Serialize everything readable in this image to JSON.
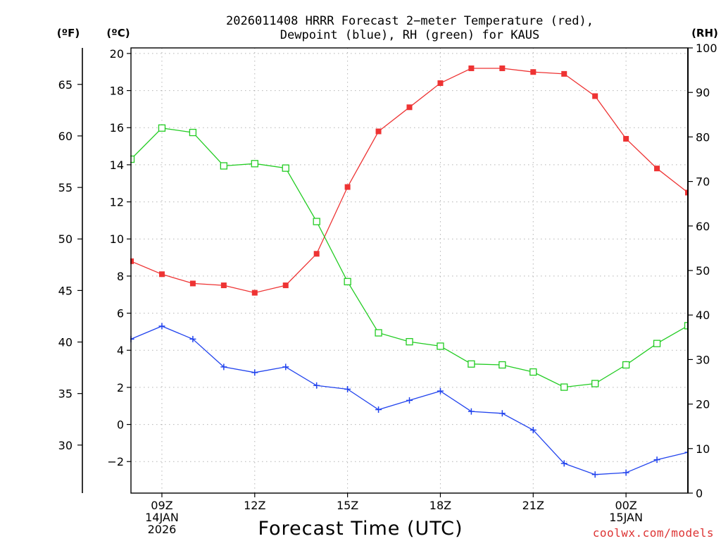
{
  "chart_data": {
    "type": "line",
    "title_lines": [
      "2026011408 HRRR Forecast 2−meter Temperature (red),",
      "Dewpoint (blue), RH (green) for KAUS"
    ],
    "xlabel": "Forecast Time (UTC)",
    "credit": "coolwx.com/models",
    "units": {
      "fahrenheit": "(ºF)",
      "celsius": "(ºC)",
      "rh": "(RH)"
    },
    "x_range": [
      8,
      26
    ],
    "x_ticks": [
      {
        "x": 9,
        "lines": [
          "09Z",
          "14JAN",
          "2026"
        ]
      },
      {
        "x": 12,
        "lines": [
          "12Z"
        ]
      },
      {
        "x": 15,
        "lines": [
          "15Z"
        ]
      },
      {
        "x": 18,
        "lines": [
          "18Z"
        ]
      },
      {
        "x": 21,
        "lines": [
          "21Z"
        ]
      },
      {
        "x": 24,
        "lines": [
          "00Z",
          "15JAN"
        ]
      }
    ],
    "celsius_axis": {
      "range": [
        -3.7,
        20.3
      ],
      "ticks": [
        20,
        18,
        16,
        14,
        12,
        10,
        8,
        6,
        4,
        2,
        0,
        -2
      ],
      "tick_labels": [
        "20",
        "18",
        "16",
        "14",
        "12",
        "10",
        "8",
        "6",
        "4",
        "2",
        "0",
        "−2"
      ]
    },
    "fahrenheit_axis": {
      "ticks": [
        65,
        60,
        55,
        50,
        45,
        40,
        35,
        30
      ],
      "tick_labels": [
        "65",
        "60",
        "55",
        "50",
        "45",
        "40",
        "35",
        "30"
      ]
    },
    "rh_axis": {
      "range": [
        0,
        100
      ],
      "ticks": [
        100,
        90,
        80,
        70,
        60,
        50,
        40,
        30,
        20,
        10,
        0
      ],
      "tick_labels": [
        "100",
        "90",
        "80",
        "70",
        "60",
        "50",
        "40",
        "30",
        "20",
        "10",
        "0"
      ]
    },
    "x": [
      8,
      9,
      10,
      11,
      12,
      13,
      14,
      15,
      16,
      17,
      18,
      19,
      20,
      21,
      22,
      23,
      24,
      25,
      26
    ],
    "series": [
      {
        "name": "2-meter Temperature",
        "axis": "celsius",
        "color": "#ee3333",
        "marker": "filled-square",
        "values": [
          8.8,
          8.1,
          7.6,
          7.5,
          7.1,
          7.5,
          9.2,
          12.8,
          15.8,
          17.1,
          18.4,
          19.2,
          19.2,
          19.0,
          18.9,
          17.7,
          15.4,
          13.8,
          12.5
        ]
      },
      {
        "name": "Dewpoint",
        "axis": "celsius",
        "color": "#2244ee",
        "marker": "plus",
        "values": [
          4.6,
          5.3,
          4.6,
          3.1,
          2.8,
          3.1,
          2.1,
          1.9,
          0.8,
          1.3,
          1.8,
          0.7,
          0.6,
          -0.3,
          -2.1,
          -2.7,
          -2.6,
          -1.9,
          -1.5
        ]
      },
      {
        "name": "RH",
        "axis": "rh",
        "color": "#22cc22",
        "marker": "open-square",
        "values": [
          75,
          82,
          81,
          73.5,
          74,
          73,
          61,
          47.5,
          36,
          34,
          33,
          29,
          28.8,
          27.2,
          23.8,
          24.6,
          28.8,
          33.6,
          37.6
        ]
      }
    ]
  }
}
